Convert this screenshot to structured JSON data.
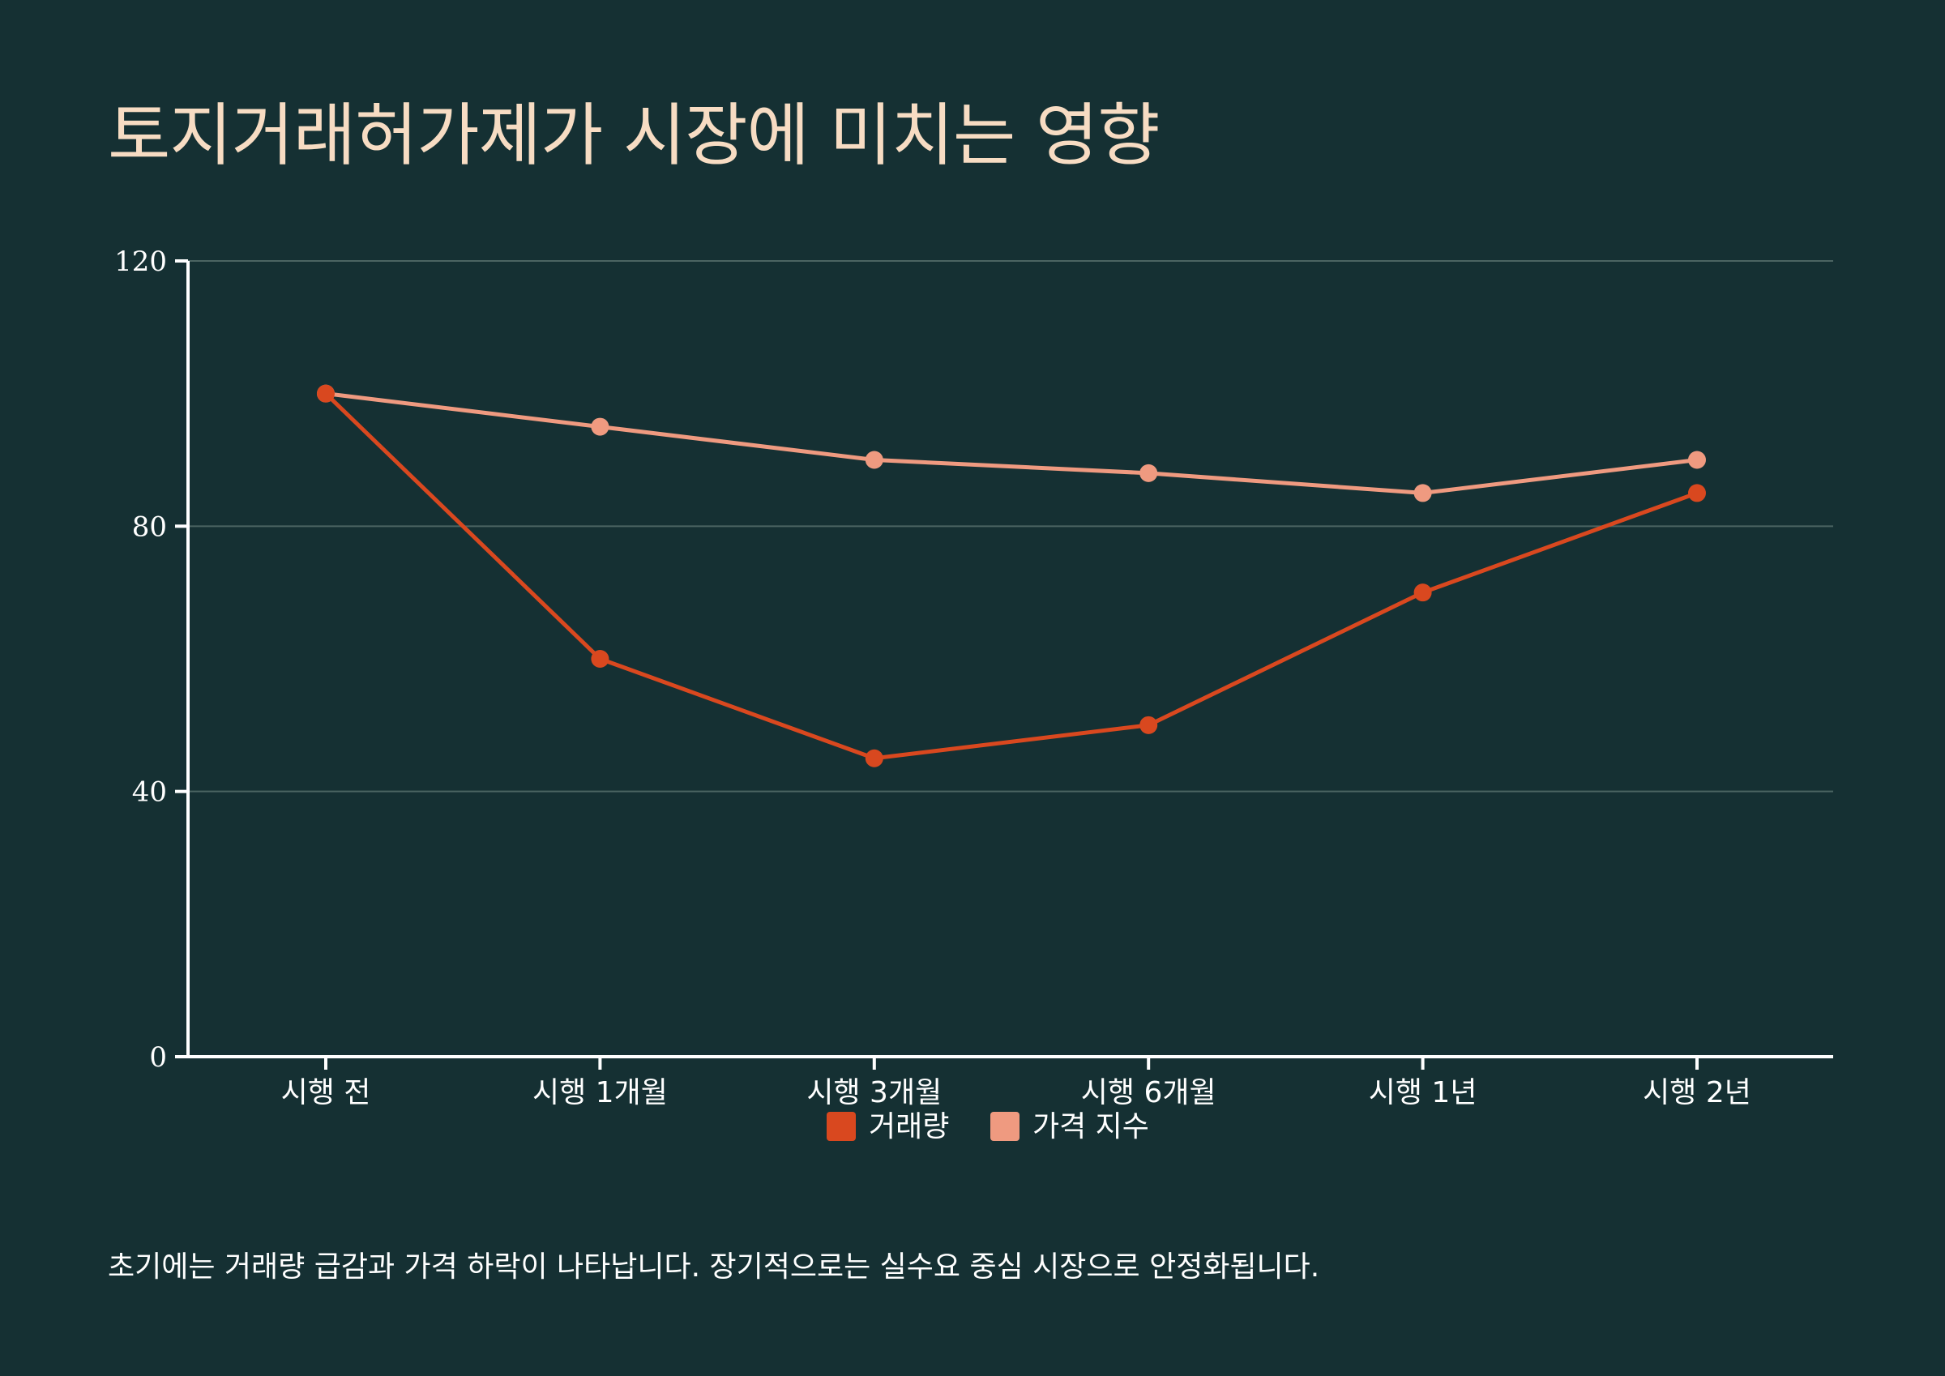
{
  "title": "토지거래허가제가 시장에 미치는 영향",
  "caption": "초기에는 거래량 급감과 가격 하락이 나타납니다. 장기적으로는 실수요 중심 시장으로 안정화됩니다.",
  "colors": {
    "background": "#153033",
    "title": "#f7dcc3",
    "grid": "#4b6462",
    "axis": "#ffffff",
    "series_volume": "#d9481f",
    "series_price": "#ef9a80"
  },
  "chart_data": {
    "type": "line",
    "categories": [
      "시행 전",
      "시행 1개월",
      "시행 3개월",
      "시행 6개월",
      "시행 1년",
      "시행 2년"
    ],
    "series": [
      {
        "name": "거래량",
        "values": [
          100,
          60,
          45,
          50,
          70,
          85
        ],
        "color": "#d9481f"
      },
      {
        "name": "가격 지수",
        "values": [
          100,
          95,
          90,
          88,
          85,
          90
        ],
        "color": "#ef9a80"
      }
    ],
    "ylim": [
      0,
      120
    ],
    "yticks": [
      0,
      40,
      80,
      120
    ],
    "grid": true,
    "legend": "bottom-center"
  }
}
